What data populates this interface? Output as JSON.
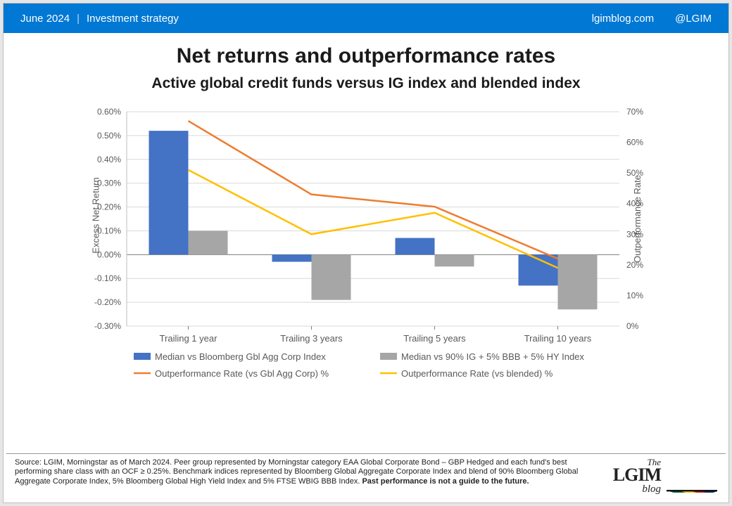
{
  "header": {
    "date": "June 2024",
    "section": "Investment strategy",
    "site": "lgimblog.com",
    "handle": "@LGIM",
    "bg_color": "#0078d4",
    "text_color": "#ffffff"
  },
  "titles": {
    "main": "Net returns and outperformance rates",
    "sub": "Active global credit funds versus IG index and blended index",
    "main_fontsize": 30,
    "sub_fontsize": 21,
    "color": "#1a1a1a"
  },
  "chart": {
    "type": "combo-bar-line-dual-axis",
    "categories": [
      "Trailing 1 year",
      "Trailing 3 years",
      "Trailing 5 years",
      "Trailing 10 years"
    ],
    "bars": [
      {
        "name": "Median vs Bloomberg Gbl Agg Corp Index",
        "color": "#4472c4",
        "values": [
          0.52,
          -0.03,
          0.07,
          -0.13
        ]
      },
      {
        "name": "Median vs 90% IG + 5% BBB + 5% HY Index",
        "color": "#a6a6a6",
        "values": [
          0.1,
          -0.19,
          -0.05,
          -0.23
        ]
      }
    ],
    "lines": [
      {
        "name": "Outperformance Rate (vs Gbl Agg Corp) %",
        "color": "#ed7d31",
        "values": [
          67,
          43,
          39,
          22
        ]
      },
      {
        "name": "Outperformance Rate (vs blended) %",
        "color": "#ffc000",
        "values": [
          51,
          30,
          37,
          19
        ]
      }
    ],
    "y_left": {
      "label": "Excess Net Return",
      "min": -0.3,
      "max": 0.6,
      "step": 0.1,
      "ticks": [
        "-0.30%",
        "-0.20%",
        "-0.10%",
        "0.00%",
        "0.10%",
        "0.20%",
        "0.30%",
        "0.40%",
        "0.50%",
        "0.60%"
      ],
      "grid_color": "#d9d9d9",
      "axis_color": "#bfbfbf",
      "label_color": "#595959",
      "label_fontsize": 13,
      "tick_fontsize": 12
    },
    "y_right": {
      "label": "Outperformance Rate",
      "min": 0,
      "max": 70,
      "step": 10,
      "ticks": [
        "0%",
        "10%",
        "20%",
        "30%",
        "40%",
        "50%",
        "60%",
        "70%"
      ],
      "label_color": "#595959",
      "label_fontsize": 13,
      "tick_fontsize": 12
    },
    "bar_width": 0.32,
    "line_width": 2.5,
    "plot_bg": "#ffffff",
    "x_tick_fontsize": 13,
    "x_tick_color": "#595959",
    "legend": {
      "fontsize": 13,
      "text_color": "#595959",
      "position": "bottom"
    }
  },
  "footer": {
    "source_text": "Source: LGIM, Morningstar as of March 2024. Peer group represented by Morningstar category EAA Global Corporate Bond – GBP Hedged and each fund's best performing share class with an OCF ≥ 0.25%. Benchmark indices represented by Bloomberg Global Aggregate Corporate Index and blend of 90% Bloomberg Global Aggregate Corporate Index, 5% Bloomberg Global High Yield Index and 5% FTSE WBIG BBB Index. ",
    "bold_text": "Past performance is not a guide to the future.",
    "fontsize": 11
  },
  "logo": {
    "the": "The",
    "name": "LGIM",
    "blog": "blog",
    "umbrella_colors": [
      "#006b3f",
      "#ffc20e",
      "#d71920",
      "#003865"
    ]
  }
}
